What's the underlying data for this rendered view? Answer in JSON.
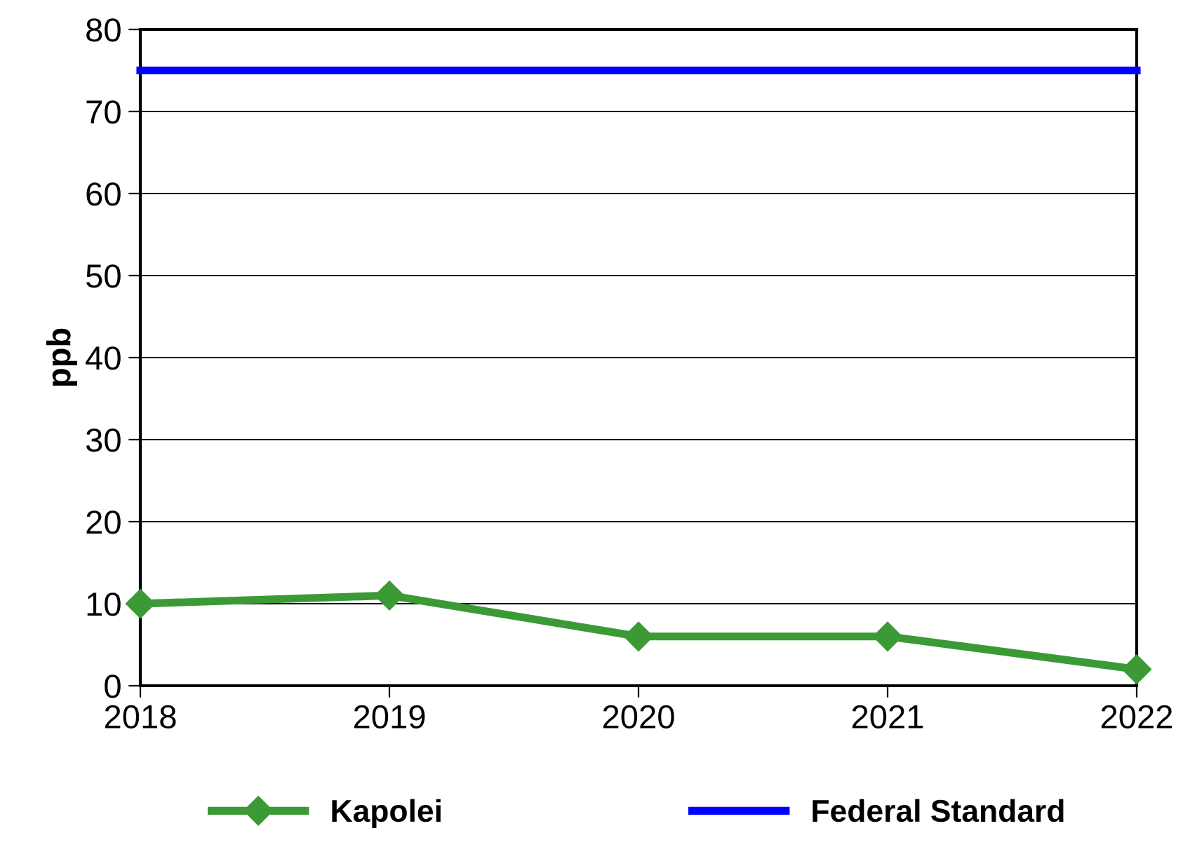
{
  "chart_data": {
    "type": "line",
    "ylabel": "ppb",
    "x": [
      2018,
      2019,
      2020,
      2021,
      2022
    ],
    "series": [
      {
        "name": "Kapolei",
        "color": "#3c9a36",
        "values": [
          10,
          11,
          6,
          6,
          2
        ],
        "marker": "diamond"
      },
      {
        "name": "Federal Standard",
        "color": "#0000ff",
        "values": [
          75,
          75,
          75,
          75,
          75
        ],
        "marker": "none"
      }
    ],
    "xlim": [
      2018,
      2022
    ],
    "xticks": [
      2018,
      2019,
      2020,
      2021,
      2022
    ],
    "ylim": [
      0,
      80
    ],
    "yticks": [
      0,
      10,
      20,
      30,
      40,
      50,
      60,
      70,
      80
    ],
    "grid": "y",
    "legend": "bottom",
    "line_style": "solid"
  }
}
